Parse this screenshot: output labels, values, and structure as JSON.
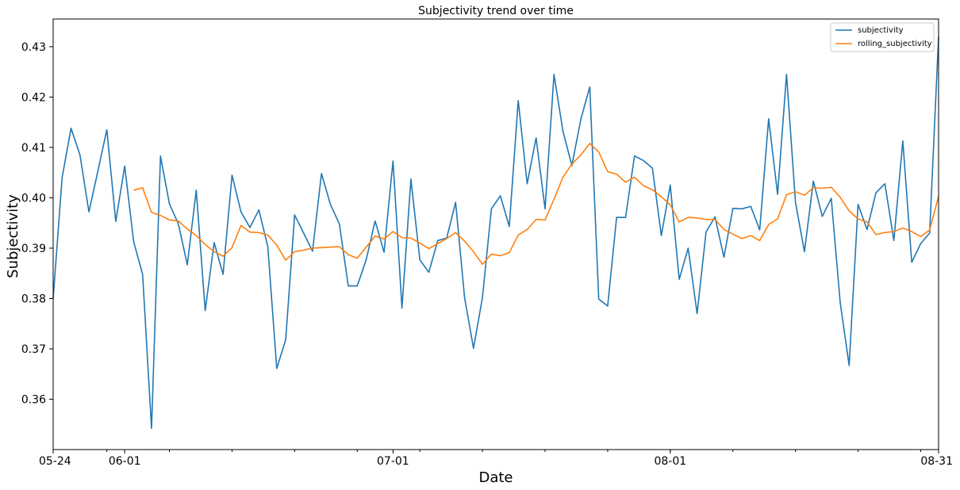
{
  "chart_data": {
    "type": "line",
    "title": "Subjectivity trend over time",
    "xlabel": "Date",
    "ylabel": "Subjectivity",
    "x_start": "05-24",
    "x_end": "08-31",
    "xlim": [
      "05-24",
      "08-31"
    ],
    "ylim": [
      0.35,
      0.4355
    ],
    "x_ticks": [
      "05-24",
      "06-01",
      "07-01",
      "08-01",
      "08-31"
    ],
    "y_ticks": [
      0.36,
      0.37,
      0.38,
      0.39,
      0.4,
      0.41,
      0.42,
      0.43
    ],
    "y_tick_labels": [
      "0.36",
      "0.37",
      "0.38",
      "0.39",
      "0.40",
      "0.41",
      "0.42",
      "0.43"
    ],
    "grid": false,
    "legend_position": "top-right",
    "series": [
      {
        "name": "subjectivity",
        "color": "#1f77b4",
        "values": [
          0.38,
          0.404,
          0.4138,
          0.4085,
          0.3972,
          0.4053,
          0.4135,
          0.3953,
          0.4063,
          0.3913,
          0.3848,
          0.3542,
          0.4083,
          0.3988,
          0.3948,
          0.3867,
          0.4015,
          0.3776,
          0.3911,
          0.3848,
          0.4045,
          0.3972,
          0.3941,
          0.3976,
          0.3903,
          0.3661,
          0.3718,
          0.3966,
          0.393,
          0.3894,
          0.4048,
          0.3987,
          0.3948,
          0.3825,
          0.3825,
          0.3877,
          0.3954,
          0.3892,
          0.4073,
          0.3781,
          0.4037,
          0.3877,
          0.3852,
          0.3915,
          0.392,
          0.3991,
          0.3802,
          0.3701,
          0.3802,
          0.3978,
          0.4004,
          0.3943,
          0.4193,
          0.4028,
          0.4119,
          0.3978,
          0.4245,
          0.4132,
          0.4064,
          0.4156,
          0.422,
          0.3799,
          0.3785,
          0.3961,
          0.3961,
          0.4083,
          0.4074,
          0.4059,
          0.3925,
          0.4025,
          0.3838,
          0.39,
          0.377,
          0.3932,
          0.3962,
          0.3882,
          0.3979,
          0.3978,
          0.3983,
          0.3936,
          0.4157,
          0.4007,
          0.4245,
          0.3991,
          0.3893,
          0.4033,
          0.3963,
          0.3999,
          0.3792,
          0.3667,
          0.3987,
          0.3937,
          0.401,
          0.4028,
          0.3915,
          0.4113,
          0.3872,
          0.3909,
          0.393,
          0.432
        ]
      },
      {
        "name": "rolling_subjectivity",
        "color": "#ff7f0e",
        "values": [
          null,
          null,
          null,
          null,
          null,
          null,
          null,
          null,
          null,
          0.4015,
          0.402,
          0.3971,
          0.3965,
          0.3956,
          0.3954,
          0.3938,
          0.3925,
          0.3907,
          0.3893,
          0.3884,
          0.3901,
          0.3945,
          0.3932,
          0.3931,
          0.3926,
          0.3906,
          0.3876,
          0.3893,
          0.3896,
          0.39,
          0.3901,
          0.3902,
          0.3903,
          0.3887,
          0.388,
          0.3902,
          0.3924,
          0.3918,
          0.3933,
          0.3921,
          0.392,
          0.391,
          0.3899,
          0.3909,
          0.3919,
          0.3931,
          0.3914,
          0.3893,
          0.3868,
          0.3888,
          0.3885,
          0.3891,
          0.3926,
          0.3937,
          0.3957,
          0.3956,
          0.3997,
          0.4041,
          0.4067,
          0.4085,
          0.4108,
          0.4091,
          0.4052,
          0.4047,
          0.4031,
          0.4041,
          0.4024,
          0.4016,
          0.4002,
          0.3986,
          0.3952,
          0.3961,
          0.396,
          0.3957,
          0.3957,
          0.3937,
          0.3928,
          0.3919,
          0.3925,
          0.3915,
          0.3947,
          0.3958,
          0.4006,
          0.4012,
          0.4005,
          0.402,
          0.4019,
          0.4021,
          0.4001,
          0.3974,
          0.3958,
          0.3952,
          0.3927,
          0.3931,
          0.3933,
          0.394,
          0.3933,
          0.3923,
          0.3936,
          0.4003
        ]
      }
    ]
  }
}
